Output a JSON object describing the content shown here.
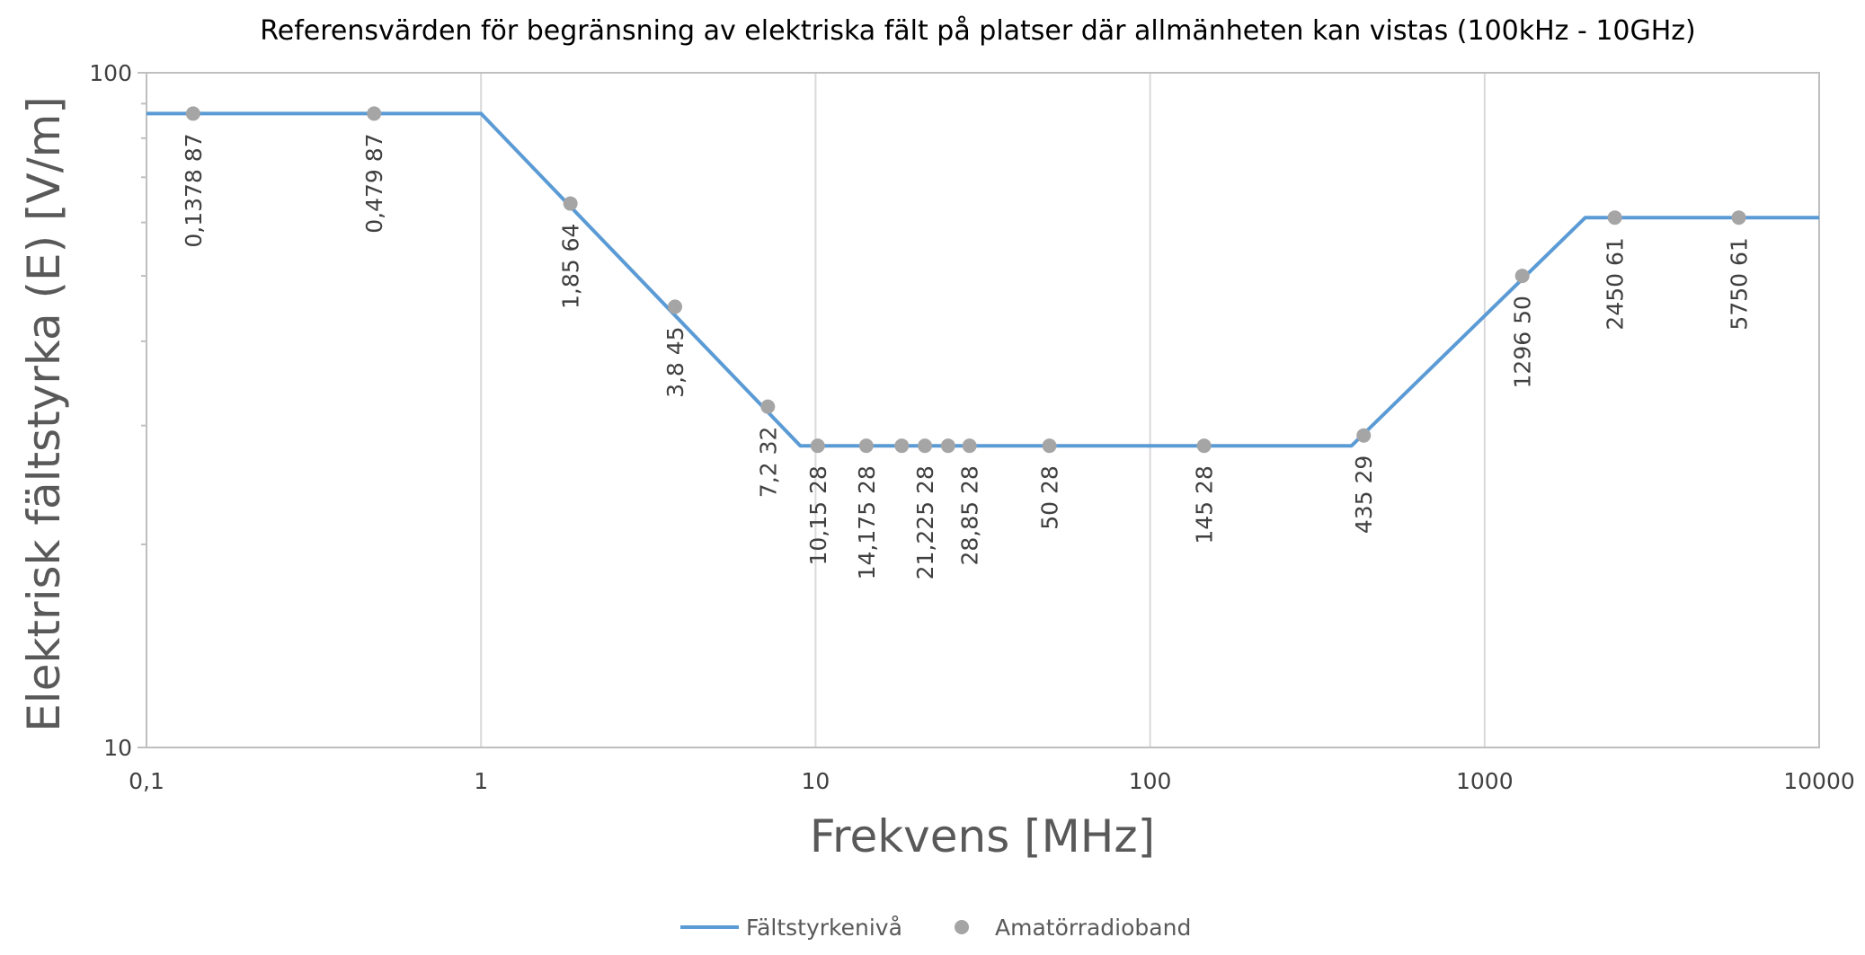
{
  "chart_data": {
    "type": "line",
    "title": "Referensvärden för begränsning av elektriska fält på platser där allmänheten kan vistas (100kHz - 10GHz)",
    "xlabel": "Frekvens [MHz]",
    "ylabel": "Elektrisk fältstyrka (E)  [V/m]",
    "x_scale": "log",
    "y_scale": "log",
    "xlim": [
      0.1,
      10000
    ],
    "ylim": [
      10,
      100
    ],
    "x_ticks": [
      0.1,
      1,
      10,
      100,
      1000,
      10000
    ],
    "x_tick_labels": [
      "0,1",
      "1",
      "10",
      "100",
      "1000",
      "10000"
    ],
    "y_ticks": [
      10,
      100
    ],
    "y_tick_labels": [
      "10",
      "100"
    ],
    "grid": "vertical major gridlines",
    "legend_position": "bottom",
    "colors": {
      "line": "#5b9bd5",
      "points": "#a5a5a5",
      "grid": "#d9d9d9",
      "axis": "#bfbfbf"
    },
    "series": [
      {
        "name": "Fältstyrkenivå",
        "type": "line",
        "x": [
          0.1,
          1,
          9,
          400,
          2000,
          10000
        ],
        "y": [
          87,
          87,
          28,
          28,
          61,
          61
        ]
      },
      {
        "name": "Amatörradioband",
        "type": "scatter",
        "points": [
          {
            "x": 0.1378,
            "y": 87,
            "label": "0,1378  87"
          },
          {
            "x": 0.479,
            "y": 87,
            "label": "0,479  87"
          },
          {
            "x": 1.85,
            "y": 64,
            "label": "1,85  64"
          },
          {
            "x": 3.8,
            "y": 45,
            "label": "3,8  45"
          },
          {
            "x": 7.2,
            "y": 32,
            "label": "7,2  32"
          },
          {
            "x": 10.15,
            "y": 28,
            "label": "10,15  28"
          },
          {
            "x": 14.175,
            "y": 28,
            "label": "14,175  28"
          },
          {
            "x": 18.1,
            "y": 28,
            "label": ""
          },
          {
            "x": 21.225,
            "y": 28,
            "label": "21,225  28"
          },
          {
            "x": 24.9,
            "y": 28,
            "label": ""
          },
          {
            "x": 28.85,
            "y": 28,
            "label": "28,85  28"
          },
          {
            "x": 50,
            "y": 28,
            "label": "50  28"
          },
          {
            "x": 145,
            "y": 28,
            "label": "145  28"
          },
          {
            "x": 435,
            "y": 29,
            "label": "435  29"
          },
          {
            "x": 1296,
            "y": 50,
            "label": "1296  50"
          },
          {
            "x": 2450,
            "y": 61,
            "label": "2450  61"
          },
          {
            "x": 5750,
            "y": 61,
            "label": "5750  61"
          }
        ]
      }
    ]
  }
}
